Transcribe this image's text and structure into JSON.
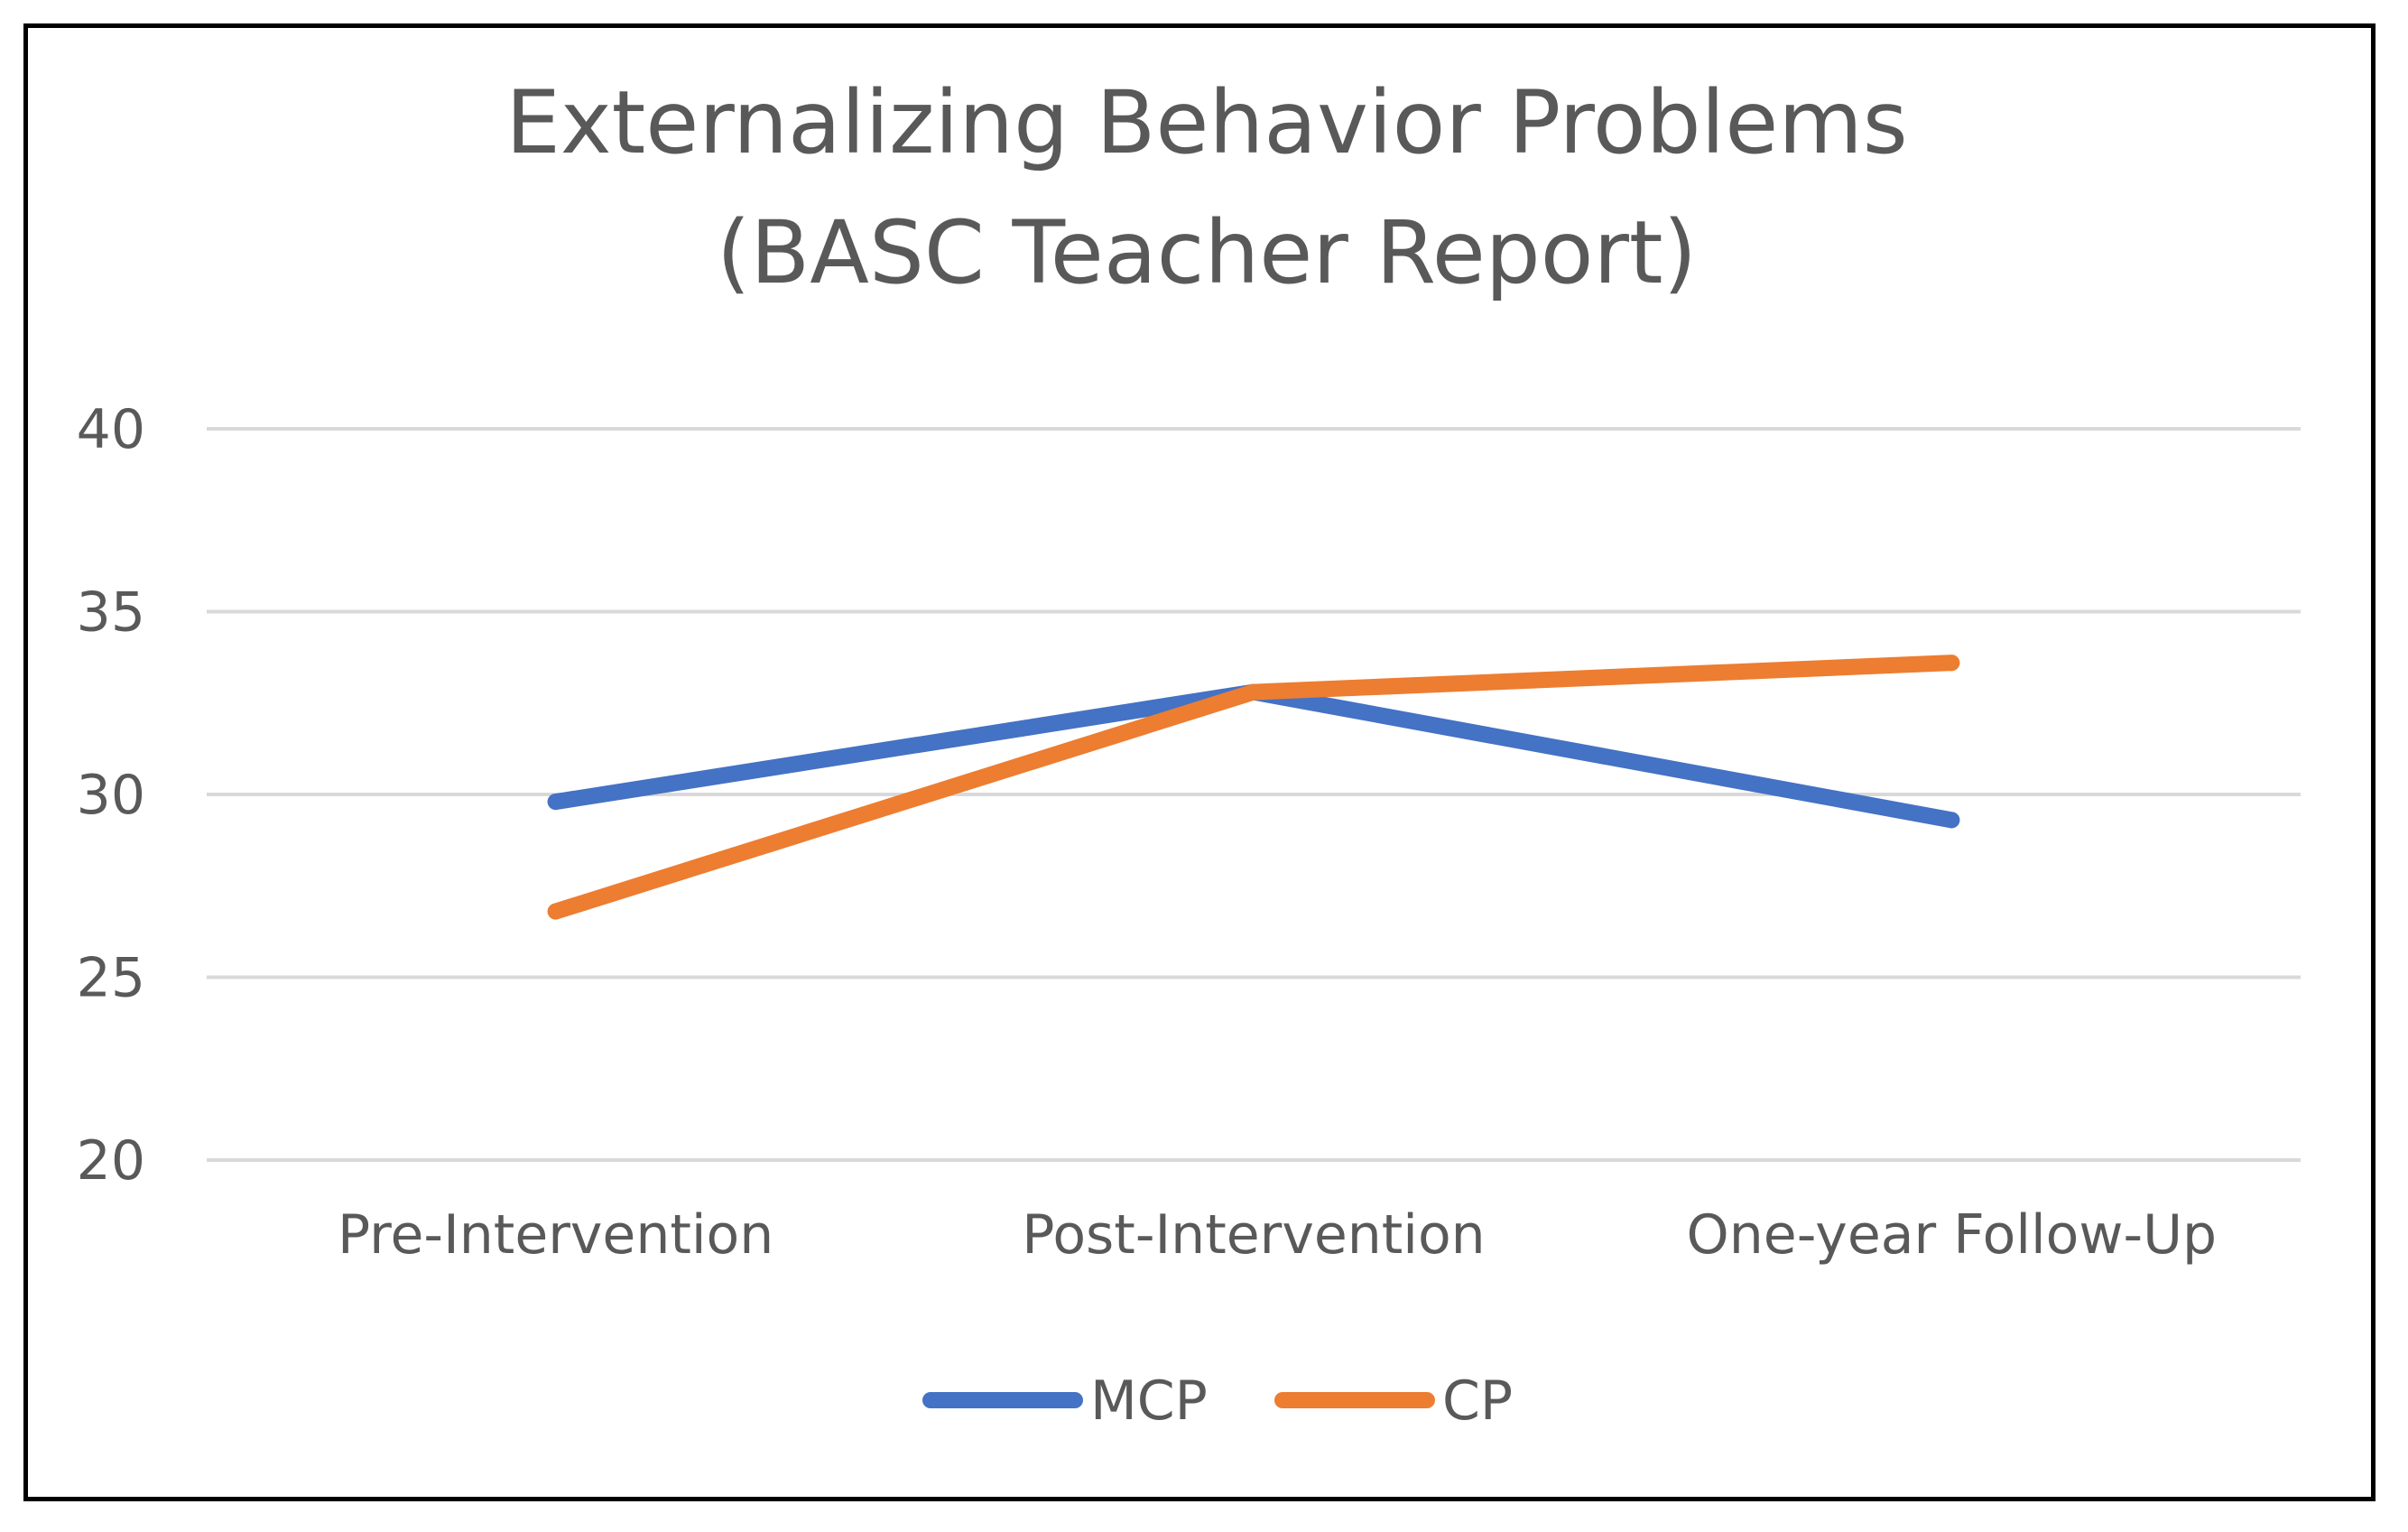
{
  "chart_data": {
    "type": "line",
    "title": "Externalizing Behavior Problems",
    "subtitle": "(BASC Teacher Report)",
    "categories": [
      "Pre-Intervention",
      "Post-Intervention",
      "One-year Follow-Up"
    ],
    "series": [
      {
        "name": "MCP",
        "values": [
          29.8,
          32.8,
          29.3
        ],
        "color": "#4472C4"
      },
      {
        "name": "CP",
        "values": [
          26.8,
          32.8,
          33.6
        ],
        "color": "#ED7D31"
      }
    ],
    "ylim": [
      20,
      40
    ],
    "yticks": [
      20,
      25,
      30,
      35,
      40
    ],
    "xlabel": "",
    "ylabel": "",
    "grid": true,
    "gridColor": "#d9d9d9",
    "legend": "bottom"
  }
}
